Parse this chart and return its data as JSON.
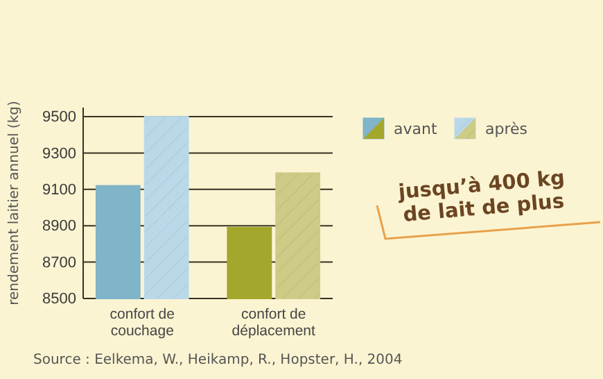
{
  "chart_data": {
    "type": "bar",
    "ylabel": "rendement laitier annuel (kg)",
    "categories": [
      "confort de\ncouchage",
      "confort de\ndéplacement"
    ],
    "series": [
      {
        "name": "avant",
        "colors": [
          "#7fb4c9",
          "#a3a72c"
        ],
        "values": [
          9120,
          8890
        ]
      },
      {
        "name": "après",
        "colors": [
          "#b9d9e9",
          "#cdcb86"
        ],
        "values": [
          9500,
          9190
        ]
      }
    ],
    "ylim": [
      8500,
      9550
    ],
    "yticks": [
      8500,
      8700,
      8900,
      9100,
      9300,
      9500
    ],
    "grid": "y",
    "legend": "top right",
    "annotations": [
      "jusqu’à 400 kg\nde lait de plus",
      "Source : Eelkema, W., Heikamp, R., Hopster, H., 2004"
    ]
  }
}
